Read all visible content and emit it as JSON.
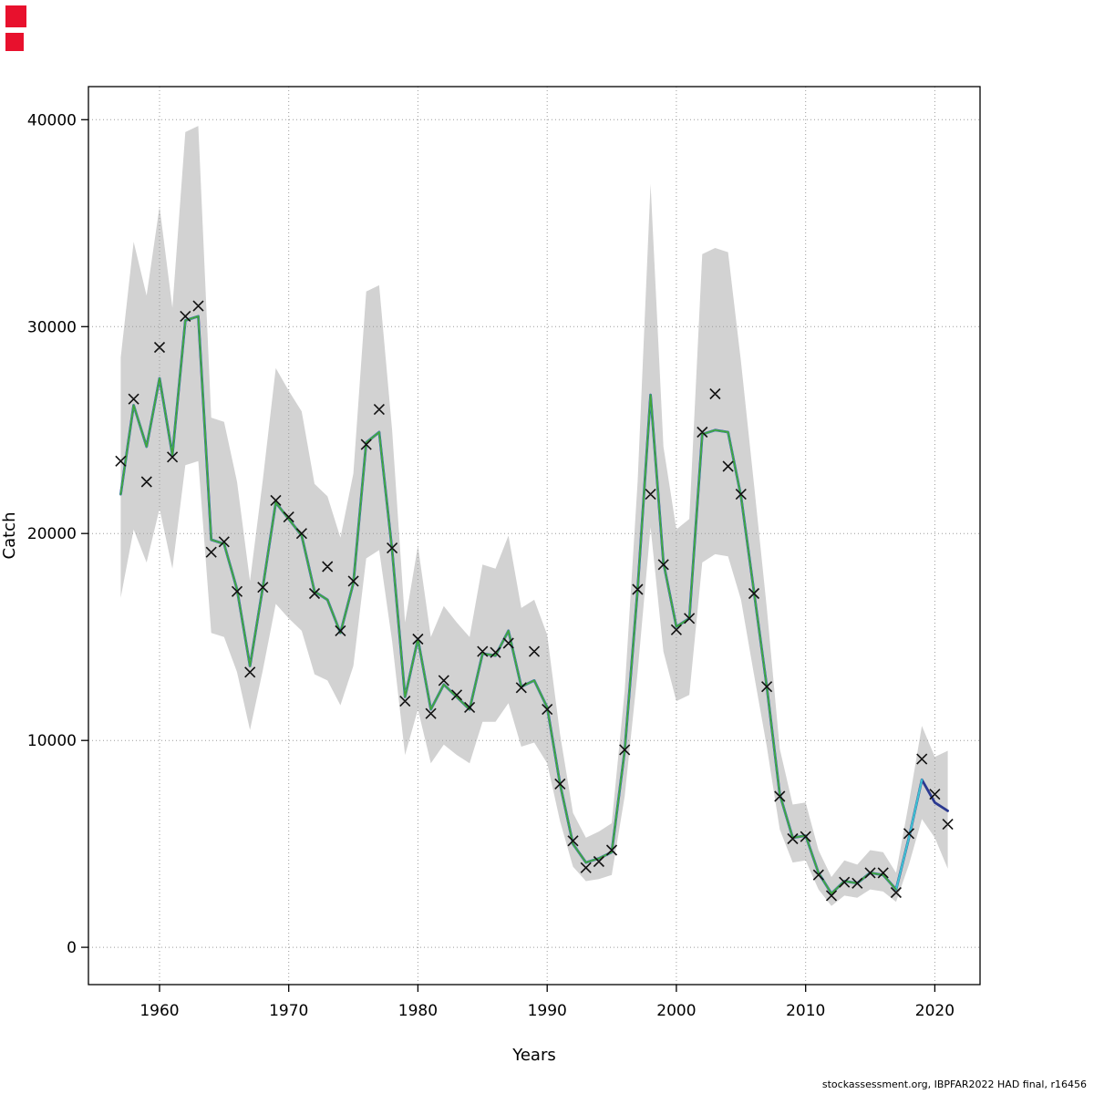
{
  "page": {
    "background": "#ffffff"
  },
  "artifacts": {
    "marker_color": "#e8112d"
  },
  "footer": {
    "credit": "stockassessment.org, IBPFAR2022 HAD final, r16456"
  },
  "chart_data": {
    "type": "line",
    "title": "",
    "xlabel": "Years",
    "ylabel": "Catch",
    "x_ticks": [
      1960,
      1970,
      1980,
      1990,
      2000,
      2010,
      2020
    ],
    "y_ticks": [
      0,
      10000,
      20000,
      30000,
      40000
    ],
    "xlim": [
      1954.5,
      2023.5
    ],
    "ylim": [
      -1800,
      41600
    ],
    "grid": true,
    "grid_color": "#9b9b9b",
    "band_color": "#d2d2d2",
    "marker": "x",
    "marker_color": "#111111",
    "years": [
      1957,
      1958,
      1959,
      1960,
      1961,
      1962,
      1963,
      1964,
      1965,
      1966,
      1967,
      1968,
      1969,
      1970,
      1971,
      1972,
      1973,
      1974,
      1975,
      1976,
      1977,
      1978,
      1979,
      1980,
      1981,
      1982,
      1983,
      1984,
      1985,
      1986,
      1987,
      1988,
      1989,
      1990,
      1991,
      1992,
      1993,
      1994,
      1995,
      1996,
      1997,
      1998,
      1999,
      2000,
      2001,
      2002,
      2003,
      2004,
      2005,
      2006,
      2007,
      2008,
      2009,
      2010,
      2011,
      2012,
      2013,
      2014,
      2015,
      2016,
      2017,
      2018,
      2019,
      2020,
      2021
    ],
    "observed": [
      23500,
      26500,
      22500,
      29000,
      23700,
      30500,
      31000,
      19100,
      19600,
      17200,
      13300,
      17400,
      21600,
      20800,
      20000,
      17100,
      18400,
      15300,
      17700,
      24300,
      26000,
      19300,
      11900,
      14900,
      11300,
      12900,
      12200,
      11600,
      14300,
      14250,
      14700,
      12550,
      14300,
      11500,
      7900,
      5150,
      3850,
      4150,
      4700,
      9550,
      17300,
      21900,
      18500,
      15350,
      15900,
      24900,
      26750,
      23250,
      21900,
      17100,
      12600,
      7300,
      5250,
      5350,
      3500,
      2500,
      3150,
      3100,
      3600,
      3600,
      2650,
      5500,
      9100,
      7400,
      5950
    ],
    "fitted": [
      21900,
      26200,
      24200,
      27500,
      23800,
      30300,
      30500,
      19700,
      19500,
      17300,
      13600,
      17400,
      21500,
      20700,
      19900,
      17200,
      16800,
      15200,
      17600,
      24400,
      24900,
      19200,
      12100,
      14900,
      11500,
      12700,
      12100,
      11500,
      14200,
      14100,
      15300,
      12600,
      12900,
      11600,
      7900,
      5000,
      4100,
      4300,
      4600,
      9500,
      17300,
      26700,
      18600,
      15500,
      15900,
      24800,
      25000,
      24900,
      21800,
      17200,
      12600,
      7400,
      5300,
      5400,
      3600,
      2600,
      3200,
      3100,
      3600,
      3500,
      2800,
      5300,
      8100,
      7000,
      6600
    ],
    "ci_high": [
      28500,
      34100,
      31500,
      35800,
      30900,
      39400,
      39700,
      25600,
      25400,
      22500,
      17700,
      22600,
      28000,
      26900,
      25900,
      22400,
      21800,
      19800,
      22900,
      31700,
      32000,
      25000,
      15700,
      19400,
      15000,
      16500,
      15700,
      15000,
      18500,
      18300,
      19900,
      16400,
      16800,
      15100,
      10300,
      6500,
      5300,
      5600,
      6000,
      12400,
      22500,
      36900,
      24200,
      20200,
      20700,
      33500,
      33800,
      33600,
      28300,
      22400,
      16400,
      9600,
      6900,
      7000,
      4700,
      3400,
      4200,
      4000,
      4700,
      4600,
      3600,
      7000,
      10700,
      9200,
      9500
    ],
    "ci_low": [
      16900,
      20200,
      18600,
      21200,
      18300,
      23300,
      23500,
      15200,
      15000,
      13300,
      10500,
      13400,
      16600,
      15900,
      15300,
      13200,
      12900,
      11700,
      13600,
      18800,
      19200,
      14800,
      9300,
      11500,
      8900,
      9800,
      9300,
      8900,
      10900,
      10900,
      11800,
      9700,
      9900,
      8900,
      6100,
      3900,
      3200,
      3300,
      3500,
      7300,
      13300,
      20300,
      14300,
      11900,
      12200,
      18600,
      19000,
      18900,
      16800,
      13200,
      9700,
      5700,
      4100,
      4200,
      2800,
      2000,
      2500,
      2400,
      2800,
      2700,
      2200,
      4000,
      6200,
      5300,
      3800
    ],
    "fit_runs": [
      {
        "name": "fit-line-navy",
        "color": "#2b3990",
        "end_year": 2021,
        "width": 2.8
      },
      {
        "name": "fit-line-cyan",
        "color": "#3fc1d1",
        "end_year": 2019,
        "width": 2.2
      },
      {
        "name": "fit-line-green",
        "color": "#43a337",
        "end_year": 2017,
        "width": 1.7
      }
    ],
    "legend": "none"
  }
}
